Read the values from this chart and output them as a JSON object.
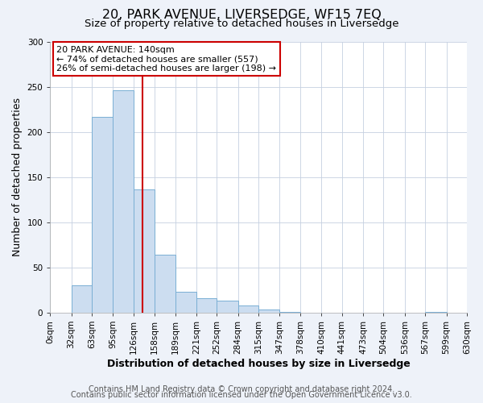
{
  "title": "20, PARK AVENUE, LIVERSEDGE, WF15 7EQ",
  "subtitle": "Size of property relative to detached houses in Liversedge",
  "xlabel": "Distribution of detached houses by size in Liversedge",
  "ylabel": "Number of detached properties",
  "bin_edges": [
    0,
    32,
    63,
    95,
    126,
    158,
    189,
    221,
    252,
    284,
    315,
    347,
    378,
    410,
    441,
    473,
    504,
    536,
    567,
    599,
    630
  ],
  "bar_heights": [
    0,
    30,
    217,
    246,
    136,
    64,
    23,
    16,
    13,
    8,
    3,
    1,
    0,
    0,
    0,
    0,
    0,
    0,
    1,
    0
  ],
  "bar_color": "#ccddf0",
  "bar_edgecolor": "#7aafd4",
  "vline_x": 140,
  "vline_color": "#cc0000",
  "annotation_box_text": "20 PARK AVENUE: 140sqm\n← 74% of detached houses are smaller (557)\n26% of semi-detached houses are larger (198) →",
  "annotation_box_facecolor": "white",
  "annotation_box_edgecolor": "#cc0000",
  "ylim": [
    0,
    300
  ],
  "yticks": [
    0,
    50,
    100,
    150,
    200,
    250,
    300
  ],
  "tick_labels": [
    "0sqm",
    "32sqm",
    "63sqm",
    "95sqm",
    "126sqm",
    "158sqm",
    "189sqm",
    "221sqm",
    "252sqm",
    "284sqm",
    "315sqm",
    "347sqm",
    "378sqm",
    "410sqm",
    "441sqm",
    "473sqm",
    "504sqm",
    "536sqm",
    "567sqm",
    "599sqm",
    "630sqm"
  ],
  "footer_line1": "Contains HM Land Registry data © Crown copyright and database right 2024.",
  "footer_line2": "Contains public sector information licensed under the Open Government Licence v3.0.",
  "bg_color": "#eef2f9",
  "plot_bg_color": "white",
  "title_fontsize": 11.5,
  "subtitle_fontsize": 9.5,
  "axis_label_fontsize": 9,
  "tick_fontsize": 7.5,
  "footer_fontsize": 7,
  "annot_fontsize": 8
}
